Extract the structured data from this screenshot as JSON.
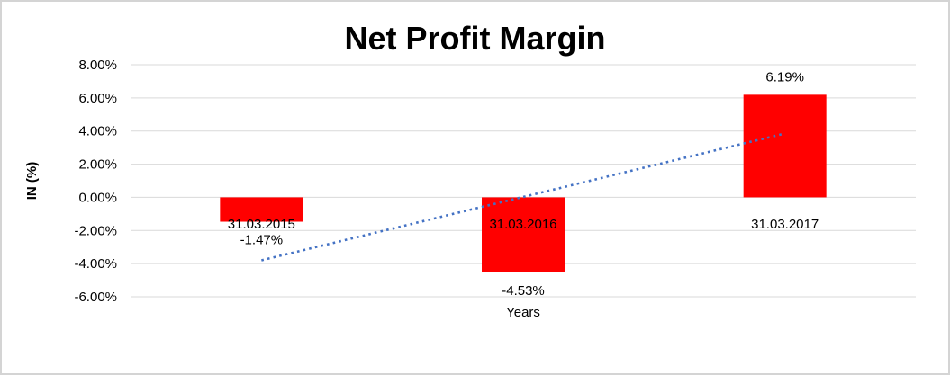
{
  "window": {
    "background_color": "#FFFFFF",
    "frame_border_color": "#D4D4D4"
  },
  "chart_data": {
    "type": "bar",
    "title": "Net Profit Margin",
    "categories": [
      "31.03.2015",
      "31.03.2016",
      "31.03.2017"
    ],
    "values": [
      -1.47,
      -4.53,
      6.19
    ],
    "data_labels": [
      "-1.47%",
      "-4.53%",
      "6.19%"
    ],
    "xlabel": "Years",
    "ylabel": "IN (%)",
    "ylim": [
      -6,
      8
    ],
    "y_tick_step": 2,
    "y_ticks": [
      {
        "value": 8,
        "label": "8.00%"
      },
      {
        "value": 6,
        "label": "6.00%"
      },
      {
        "value": 4,
        "label": "4.00%"
      },
      {
        "value": 2,
        "label": "2.00%"
      },
      {
        "value": 0,
        "label": "0.00%"
      },
      {
        "value": -2,
        "label": "-2.00%"
      },
      {
        "value": -4,
        "label": "-4.00%"
      },
      {
        "value": -6,
        "label": "-6.00%"
      }
    ],
    "grid": true,
    "legend_position": "none",
    "bar_color": "#FF0000",
    "gridline_color": "#D9D9D9",
    "text_color": "#000000",
    "trendline": {
      "type": "linear",
      "style": "dotted",
      "color": "#4472C4",
      "start": {
        "category_index": 0,
        "value": -3.8
      },
      "end": {
        "category_index": 2,
        "value": 3.85
      }
    }
  }
}
